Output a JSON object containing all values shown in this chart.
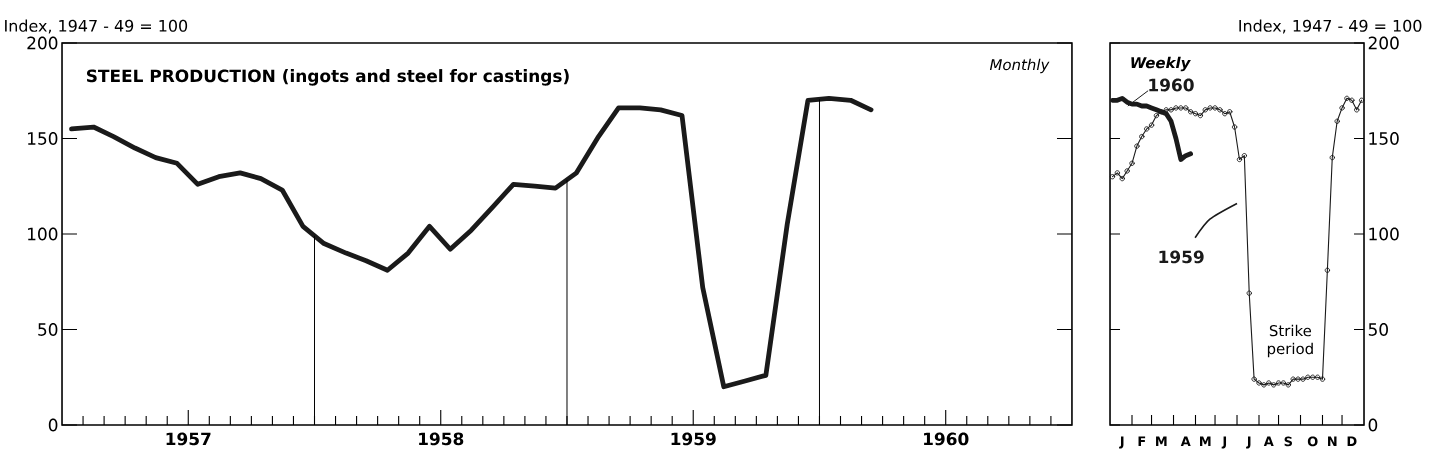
{
  "chart_data": [
    {
      "type": "line",
      "title": "STEEL PRODUCTION (ingots and steel for castings)",
      "ylabel": "Index, 1947 - 49 = 100",
      "annotations": [
        "Monthly"
      ],
      "x": [
        "1957-01-15",
        "1957-02-15",
        "1957-03-15",
        "1957-04-15",
        "1957-05-15",
        "1957-06-15",
        "1957-07-15",
        "1957-08-15",
        "1957-09-15",
        "1957-10-15",
        "1957-11-15",
        "1957-12-15",
        "1958-01-15",
        "1958-02-15",
        "1958-03-15",
        "1958-04-15",
        "1958-05-15",
        "1958-06-15",
        "1958-07-15",
        "1958-08-15",
        "1958-09-15",
        "1958-10-15",
        "1958-11-15",
        "1958-12-15",
        "1959-01-15",
        "1959-02-15",
        "1959-03-15",
        "1959-04-15",
        "1959-05-15",
        "1959-06-15",
        "1959-07-15",
        "1959-08-15",
        "1959-09-15",
        "1959-10-15",
        "1959-11-15",
        "1959-12-15",
        "1960-01-15",
        "1960-02-15",
        "1960-03-15"
      ],
      "series": [
        {
          "color": "#1a1a1a",
          "values": [
            155,
            156,
            151,
            145,
            140,
            137,
            126,
            130,
            132,
            129,
            123,
            104,
            95,
            90,
            86,
            81,
            90,
            104,
            92,
            102,
            114,
            126,
            125,
            124,
            132,
            151,
            166,
            166,
            165,
            162,
            72,
            20,
            23,
            26,
            105,
            170,
            171,
            170,
            165
          ]
        }
      ],
      "xlim": [
        "1957",
        "1961"
      ],
      "ylim": [
        0,
        200
      ],
      "yticks": [
        0,
        50,
        100,
        150,
        200
      ],
      "xticks": [
        {
          "value": "1957-02",
          "label": null
        },
        {
          "value": "1957-03",
          "label": null
        },
        {
          "value": "1957-04",
          "label": null
        },
        {
          "value": "1957-05",
          "label": null
        },
        {
          "value": "1957-06",
          "label": null
        },
        {
          "value": "1957-07",
          "label": "1957"
        },
        {
          "value": "1957-08",
          "label": null
        },
        {
          "value": "1957-09",
          "label": null
        },
        {
          "value": "1957-10",
          "label": null
        },
        {
          "value": "1957-11",
          "label": null
        },
        {
          "value": "1957-12",
          "label": null
        },
        {
          "value": "1958",
          "label": null
        },
        {
          "value": "1958-02",
          "label": null
        },
        {
          "value": "1958-03",
          "label": null
        },
        {
          "value": "1958-04",
          "label": null
        },
        {
          "value": "1958-05",
          "label": null
        },
        {
          "value": "1958-06",
          "label": null
        },
        {
          "value": "1958-07",
          "label": "1958"
        },
        {
          "value": "1958-08",
          "label": null
        },
        {
          "value": "1958-09",
          "label": null
        },
        {
          "value": "1958-10",
          "label": null
        },
        {
          "value": "1958-11",
          "label": null
        },
        {
          "value": "1958-12",
          "label": null
        },
        {
          "value": "1959",
          "label": null
        },
        {
          "value": "1959-02",
          "label": null
        },
        {
          "value": "1959-03",
          "label": null
        },
        {
          "value": "1959-04",
          "label": null
        },
        {
          "value": "1959-05",
          "label": null
        },
        {
          "value": "1959-06",
          "label": null
        },
        {
          "value": "1959-07",
          "label": "1959"
        },
        {
          "value": "1959-08",
          "label": null
        },
        {
          "value": "1959-09",
          "label": null
        },
        {
          "value": "1959-10",
          "label": null
        },
        {
          "value": "1959-11",
          "label": null
        },
        {
          "value": "1959-12",
          "label": null
        },
        {
          "value": "1960",
          "label": null
        },
        {
          "value": "1960-02",
          "label": null
        },
        {
          "value": "1960-03",
          "label": null
        },
        {
          "value": "1960-04",
          "label": null
        },
        {
          "value": "1960-05",
          "label": null
        },
        {
          "value": "1960-06",
          "label": null
        },
        {
          "value": "1960-07",
          "label": "1960"
        },
        {
          "value": "1960-08",
          "label": null
        },
        {
          "value": "1960-09",
          "label": null
        },
        {
          "value": "1960-10",
          "label": null
        },
        {
          "value": "1960-11",
          "label": null
        },
        {
          "value": "1960-12",
          "label": null
        }
      ],
      "ref_lines": [
        {
          "axis": "x",
          "value": "1958"
        },
        {
          "axis": "x",
          "value": "1959"
        },
        {
          "axis": "x",
          "value": "1960"
        }
      ]
    },
    {
      "type": "line",
      "ylabel": "Index, 1947 - 49 = 100",
      "annotations": [
        "Weekly",
        "Strike period"
      ],
      "series": [
        {
          "name": "1960",
          "color": "#1a1a1a",
          "marker": "none",
          "values": [
            170,
            170,
            171,
            169,
            168,
            168,
            167,
            167,
            166,
            165,
            164,
            163,
            159,
            150,
            139,
            141,
            142,
            null,
            null,
            null,
            null,
            null,
            null,
            null,
            null,
            null,
            null,
            null,
            null,
            null,
            null,
            null,
            null,
            null,
            null,
            null,
            null,
            null,
            null,
            null,
            null,
            null,
            null,
            null,
            null,
            null,
            null,
            null,
            null,
            null,
            null,
            null
          ]
        },
        {
          "name": "1959",
          "color": "#1a1a1a",
          "marker": "circle",
          "values": [
            130,
            132,
            129,
            133,
            137,
            146,
            151,
            155,
            157,
            162,
            164,
            165,
            165,
            166,
            166,
            166,
            164,
            163,
            162,
            165,
            166,
            166,
            165,
            163,
            164,
            156,
            139,
            141,
            69,
            24,
            22,
            21,
            22,
            21,
            22,
            22,
            21,
            24,
            24,
            24,
            25,
            25,
            25,
            24,
            81,
            140,
            159,
            166,
            171,
            170,
            165,
            170
          ]
        }
      ],
      "categories": [
        null,
        null,
        "J",
        null,
        null,
        null,
        "F",
        null,
        null,
        null,
        "M",
        null,
        null,
        null,
        null,
        "A",
        null,
        null,
        null,
        "M",
        null,
        null,
        null,
        "J",
        null,
        null,
        null,
        null,
        "J",
        null,
        null,
        null,
        "A",
        null,
        null,
        null,
        "S",
        null,
        null,
        null,
        null,
        "O",
        null,
        null,
        null,
        "N",
        null,
        null,
        null,
        "D",
        null,
        null
      ],
      "ylim": [
        0,
        200
      ],
      "yticks": [
        0,
        50,
        100,
        150,
        200
      ]
    }
  ]
}
